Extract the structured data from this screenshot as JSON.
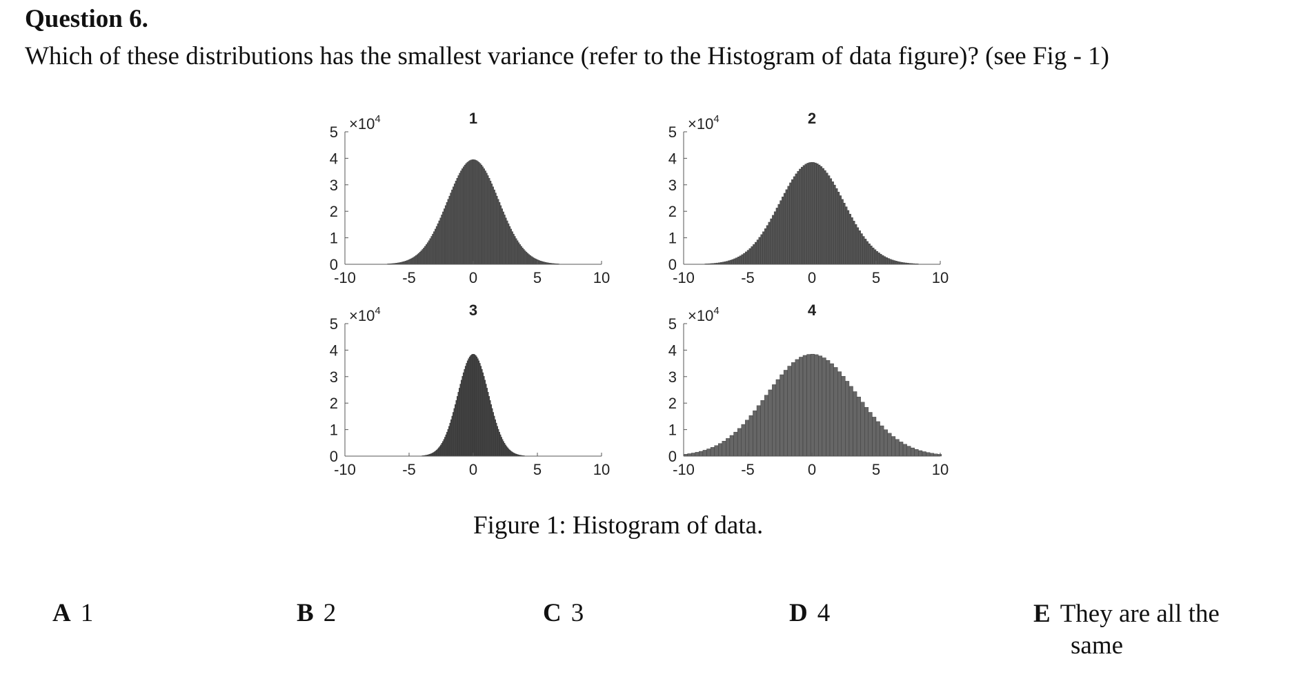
{
  "question": {
    "title": "Question 6.",
    "text": "Which of these distributions has the smallest variance (refer to the Histogram of data figure)? (see Fig - 1)"
  },
  "figure": {
    "caption": "Figure 1: Histogram of data."
  },
  "chart_data": [
    {
      "type": "bar",
      "title": "1",
      "scale_label": "×10",
      "scale_exp": "4",
      "x_ticks": [
        "-10",
        "-5",
        "0",
        "5",
        "10"
      ],
      "y_ticks": [
        "0",
        "1",
        "2",
        "3",
        "4",
        "5"
      ],
      "xlim": [
        -10,
        10
      ],
      "ylim": [
        0,
        5
      ],
      "mean": 0,
      "std": 2.0,
      "peak": 3.95,
      "bar_width": 0.1,
      "bar_color": "#555555"
    },
    {
      "type": "bar",
      "title": "2",
      "scale_label": "×10",
      "scale_exp": "4",
      "x_ticks": [
        "-10",
        "-5",
        "0",
        "5",
        "10"
      ],
      "y_ticks": [
        "0",
        "1",
        "2",
        "3",
        "4",
        "5"
      ],
      "xlim": [
        -10,
        10
      ],
      "ylim": [
        0,
        5
      ],
      "mean": 0,
      "std": 2.5,
      "peak": 3.85,
      "bar_width": 0.15,
      "bar_color": "#555555"
    },
    {
      "type": "bar",
      "title": "3",
      "scale_label": "×10",
      "scale_exp": "4",
      "x_ticks": [
        "-10",
        "-5",
        "0",
        "5",
        "10"
      ],
      "y_ticks": [
        "0",
        "1",
        "2",
        "3",
        "4",
        "5"
      ],
      "xlim": [
        -10,
        10
      ],
      "ylim": [
        0,
        5
      ],
      "mean": 0,
      "std": 1.2,
      "peak": 3.85,
      "bar_width": 0.08,
      "bar_color": "#444444"
    },
    {
      "type": "bar",
      "title": "4",
      "scale_label": "×10",
      "scale_exp": "4",
      "x_ticks": [
        "-10",
        "-5",
        "0",
        "5",
        "10"
      ],
      "y_ticks": [
        "0",
        "1",
        "2",
        "3",
        "4",
        "5"
      ],
      "xlim": [
        -10,
        10
      ],
      "ylim": [
        0,
        5
      ],
      "mean": 0,
      "std": 3.5,
      "peak": 3.85,
      "bar_width": 0.3,
      "bar_color": "#666666"
    }
  ],
  "options": [
    {
      "letter": "A",
      "text": "1"
    },
    {
      "letter": "B",
      "text": "2"
    },
    {
      "letter": "C",
      "text": "3"
    },
    {
      "letter": "D",
      "text": "4"
    },
    {
      "letter": "E",
      "text": "They are all the",
      "text_cont": "same"
    }
  ]
}
